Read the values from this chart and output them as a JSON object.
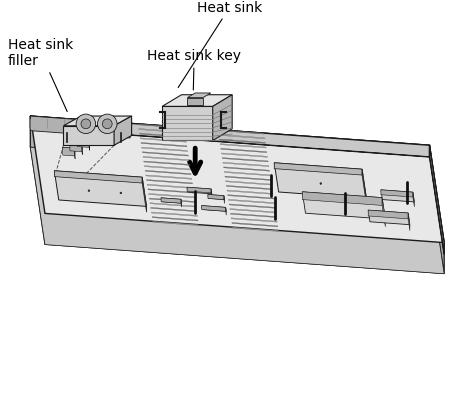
{
  "background_color": "#ffffff",
  "figure_width": 4.56,
  "figure_height": 4.14,
  "dpi": 100,
  "label_heat_sink": "Heat sink",
  "label_heat_sink_key": "Heat sink key",
  "label_heat_sink_filler": "Heat sink\nfiller",
  "label_fontsize": 10,
  "dark": "#1a1a1a",
  "board_face_color": "#e8e8e8",
  "board_front_color": "#c8c8c8",
  "board_right_color": "#b8b8b8",
  "dimm_color1": "#888888",
  "dimm_color2": "#aaaaaa",
  "hs_top_color": "#e0e0e0",
  "hs_front_color": "#c0c0c0",
  "hs_right_color": "#909090",
  "cpu_color": "#d0d0d0"
}
